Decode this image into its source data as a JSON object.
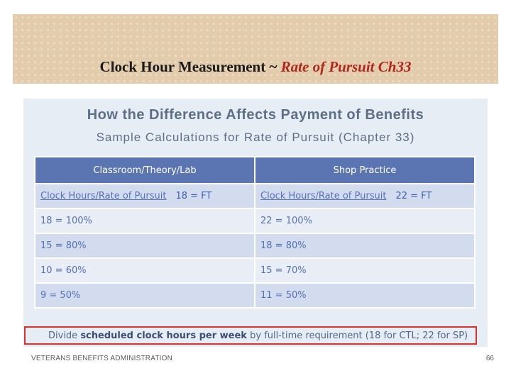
{
  "banner": {
    "title_main": "Clock Hour Measurement ~ ",
    "title_italic": "Rate of Pursuit Ch33"
  },
  "slide": {
    "heading": "How the Difference Affects Payment of Benefits",
    "subheading": "Sample Calculations for Rate of Pursuit (Chapter 33)",
    "table": {
      "headers": [
        "Classroom/Theory/Lab",
        "Shop Practice"
      ],
      "subheader": [
        {
          "label": "Clock Hours/Rate of Pursuit",
          "ft": "18 = FT"
        },
        {
          "label": "Clock Hours/Rate of Pursuit",
          "ft": "22 = FT"
        }
      ],
      "rows": [
        [
          "18 = 100%",
          "22 = 100%"
        ],
        [
          "15 = 80%",
          "18 = 80%"
        ],
        [
          "10 = 60%",
          "15 = 70%"
        ],
        [
          "9 = 50%",
          "11 = 50%"
        ]
      ]
    },
    "note": {
      "prefix": "Divide ",
      "bold": "scheduled clock hours per week",
      "suffix": " by full-time requirement (18 for CTL; 22 for SP)"
    }
  },
  "footer": {
    "org": "VETERANS BENEFITS ADMINISTRATION",
    "page_number": "66"
  },
  "colors": {
    "banner_bg": "#e2ccab",
    "title_accent": "#b3261e",
    "header_blue": "#5b75b3",
    "note_border": "#d9322e"
  }
}
